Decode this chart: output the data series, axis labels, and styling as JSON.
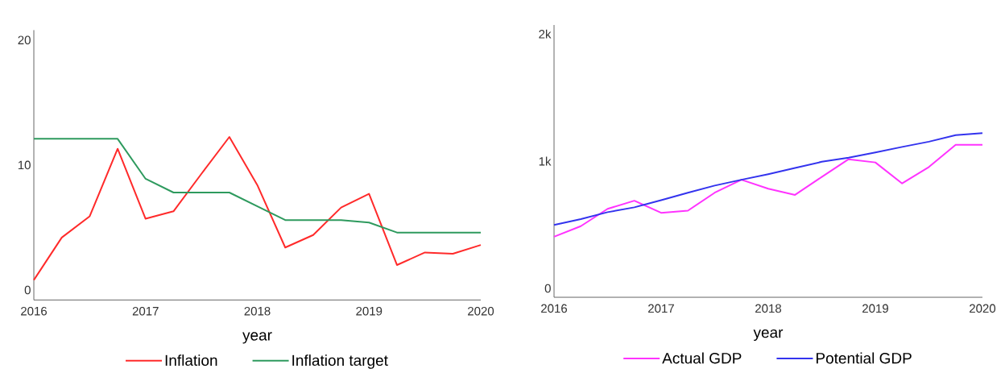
{
  "chart_data": [
    {
      "type": "line",
      "xlabel": "year",
      "x": [
        2016,
        2016.25,
        2016.5,
        2016.75,
        2017,
        2017.25,
        2017.5,
        2017.75,
        2018,
        2018.25,
        2018.5,
        2018.75,
        2019,
        2019.25,
        2019.5,
        2019.75,
        2020
      ],
      "xlim": [
        2016,
        2020
      ],
      "xticks": [
        2016,
        2017,
        2018,
        2019,
        2020
      ],
      "ylim": [
        -0.8,
        20.8
      ],
      "yticks": [
        0,
        10,
        20
      ],
      "legend": "bottom",
      "series": [
        {
          "name": "Inflation",
          "color": "#ff2a2a",
          "values": [
            0.8,
            4.2,
            5.9,
            11.3,
            5.7,
            6.3,
            9.3,
            12.25,
            8.4,
            3.4,
            4.4,
            6.6,
            7.7,
            2.0,
            3.0,
            2.9,
            3.6
          ]
        },
        {
          "name": "Inflation target",
          "color": "#2e9a5e",
          "values": [
            12.1,
            12.1,
            12.1,
            12.1,
            8.9,
            7.8,
            7.8,
            7.8,
            6.7,
            5.6,
            5.6,
            5.6,
            5.4,
            4.6,
            4.6,
            4.6,
            4.6
          ]
        }
      ]
    },
    {
      "type": "line",
      "xlabel": "year",
      "x": [
        2016,
        2016.25,
        2016.5,
        2016.75,
        2017,
        2017.25,
        2017.5,
        2017.75,
        2018,
        2018.25,
        2018.5,
        2018.75,
        2019,
        2019.25,
        2019.5,
        2019.75,
        2020
      ],
      "xlim": [
        2016,
        2020
      ],
      "xticks": [
        2016,
        2017,
        2018,
        2019,
        2020
      ],
      "ylim": [
        -70,
        2070
      ],
      "yticks": [
        0,
        {
          "value": 1000,
          "label": "1k"
        },
        {
          "value": 2000,
          "label": "2k"
        }
      ],
      "legend": "bottom",
      "series": [
        {
          "name": "Actual GDP",
          "color": "#ff33ff",
          "values": [
            406,
            489,
            625,
            689,
            594,
            611,
            752,
            854,
            783,
            735,
            876,
            1015,
            990,
            825,
            954,
            1129,
            1129
          ]
        },
        {
          "name": "Potential GDP",
          "color": "#3333ee",
          "values": [
            499,
            545,
            599,
            637,
            693,
            752,
            808,
            854,
            898,
            946,
            995,
            1027,
            1068,
            1112,
            1153,
            1204,
            1221
          ]
        }
      ]
    }
  ]
}
